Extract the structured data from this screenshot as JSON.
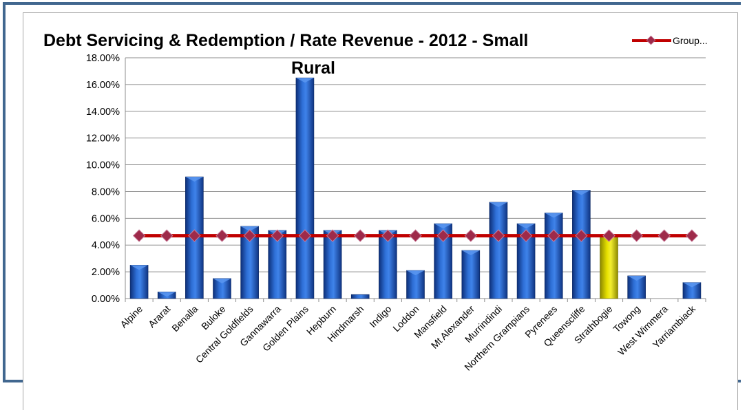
{
  "chart_data": {
    "type": "bar",
    "title_line1": "Debt Servicing & Redemption / Rate Revenue - 2012 - Small",
    "title_line2": "Rural",
    "xlabel": "",
    "ylabel": "",
    "ylim": [
      0,
      0.18
    ],
    "y_ticks": [
      "0.00%",
      "2.00%",
      "4.00%",
      "6.00%",
      "8.00%",
      "10.00%",
      "12.00%",
      "14.00%",
      "16.00%",
      "18.00%"
    ],
    "grid": true,
    "legend_position": "top-right",
    "categories": [
      "Alpine",
      "Ararat",
      "Benalla",
      "Buloke",
      "Central Goldfields",
      "Gannawarra",
      "Golden Plains",
      "Hepburn",
      "Hindmarsh",
      "Indigo",
      "Loddon",
      "Mansfield",
      "Mt Alexander",
      "Murrindindi",
      "Northern Grampians",
      "Pyrenees",
      "Queenscliffe",
      "Strathbogie",
      "Towong",
      "West Wimmera",
      "Yarriambiack"
    ],
    "series": [
      {
        "type": "bar",
        "values": [
          0.025,
          0.005,
          0.091,
          0.015,
          0.054,
          0.051,
          0.165,
          0.051,
          0.003,
          0.051,
          0.021,
          0.056,
          0.036,
          0.072,
          0.056,
          0.064,
          0.081,
          0.047,
          0.017,
          0.0,
          0.012
        ],
        "color": "#1f4ea8",
        "highlight_category": "Strathbogie",
        "highlight_color": "#d8d200"
      },
      {
        "type": "line",
        "name": "Group...",
        "values": [
          0.047,
          0.047,
          0.047,
          0.047,
          0.047,
          0.047,
          0.047,
          0.047,
          0.047,
          0.047,
          0.047,
          0.047,
          0.047,
          0.047,
          0.047,
          0.047,
          0.047,
          0.047,
          0.047,
          0.047,
          0.047
        ],
        "color": "#c00000",
        "marker_color": "#9e2a4a"
      }
    ]
  }
}
